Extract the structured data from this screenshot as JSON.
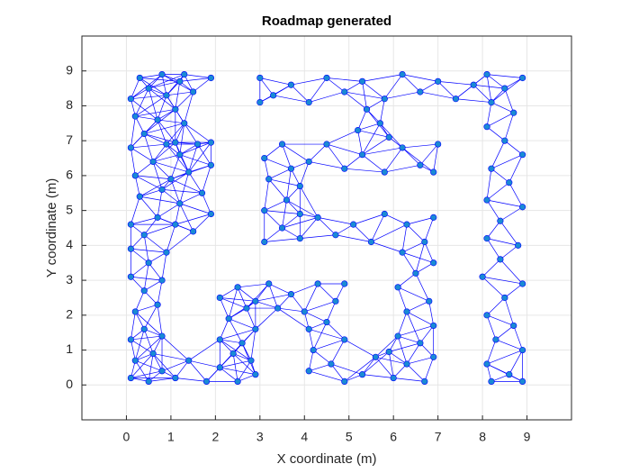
{
  "chart_data": {
    "type": "scatter",
    "title": "Roadmap generated",
    "xlabel": "X coordinate (m)",
    "ylabel": "Y coordinate (m)",
    "x": [
      0.1,
      0.5,
      0.8,
      0.2,
      0.6,
      0.1,
      0.4,
      0.8,
      0.2,
      0.7,
      0.4,
      0.1,
      0.8,
      0.5,
      0.1,
      0.9,
      0.4,
      0.1,
      0.7,
      0.3,
      0.8,
      0.2,
      0.6,
      0.1,
      0.9,
      0.4,
      0.2,
      0.7,
      0.1,
      0.5,
      0.9,
      0.3,
      0.8,
      1.2,
      1.5,
      1.9,
      1.3,
      1.1,
      1.3,
      1.1,
      1.5,
      1.9,
      1.2,
      1.7,
      1.0,
      1.4,
      1.9,
      1.2,
      1.6,
      1.9,
      1.1,
      1.1,
      1.4,
      1.8,
      2.1,
      2.5,
      2.8,
      2.4,
      2.9,
      2.1,
      2.6,
      2.9,
      2.3,
      2.7,
      2.1,
      2.5,
      2.9,
      3.2,
      3.4,
      3.7,
      4.0,
      4.3,
      4.7,
      4.9,
      4.1,
      4.5,
      4.9,
      4.2,
      4.6,
      4.1,
      4.9,
      5.3,
      5.6,
      6.0,
      6.3,
      6.7,
      6.9,
      5.9,
      6.1,
      6.6,
      6.9,
      6.3,
      6.8,
      6.1,
      6.5,
      6.9,
      6.2,
      6.7,
      6.9,
      6.3,
      3.1,
      3.5,
      3.9,
      4.3,
      4.7,
      5.1,
      5.5,
      5.8,
      3.9,
      3.1,
      3.6,
      3.9,
      3.2,
      3.7,
      3.1,
      3.5,
      4.1,
      4.5,
      4.9,
      5.3,
      5.8,
      6.2,
      6.6,
      7.0,
      6.9,
      5.2,
      5.7,
      5.4,
      5.9,
      3.0,
      3.3,
      3.7,
      4.1,
      4.5,
      4.9,
      5.3,
      5.8,
      6.2,
      6.6,
      7.0,
      7.4,
      7.8,
      3.0,
      8.1,
      8.5,
      8.9,
      8.2,
      8.7,
      8.1,
      8.5,
      8.9,
      8.2,
      8.6,
      8.1,
      8.9,
      8.4,
      8.1,
      8.8,
      8.4,
      8.0,
      8.9,
      8.5,
      8.1,
      8.7,
      8.3,
      8.9,
      8.1,
      8.6,
      8.9,
      8.2
    ],
    "y": [
      0.2,
      0.1,
      0.4,
      0.7,
      0.9,
      1.3,
      1.6,
      1.4,
      2.1,
      2.3,
      2.7,
      3.1,
      3.0,
      3.5,
      3.9,
      3.8,
      4.3,
      4.6,
      4.8,
      5.4,
      5.6,
      6.0,
      6.4,
      6.8,
      6.9,
      7.2,
      7.7,
      7.6,
      8.2,
      8.5,
      8.3,
      8.8,
      8.9,
      8.7,
      8.4,
      8.8,
      8.9,
      7.9,
      7.5,
      4.6,
      4.4,
      4.9,
      5.2,
      5.5,
      5.9,
      6.1,
      6.3,
      6.6,
      6.9,
      6.95,
      6.95,
      0.2,
      0.7,
      0.1,
      0.5,
      0.1,
      0.7,
      0.9,
      0.3,
      1.3,
      1.2,
      1.6,
      1.9,
      2.2,
      2.5,
      2.8,
      2.4,
      2.9,
      2.2,
      2.6,
      2.1,
      2.9,
      2.4,
      2.9,
      1.6,
      1.8,
      1.3,
      1.0,
      0.6,
      0.4,
      0.1,
      0.3,
      0.8,
      0.2,
      0.6,
      0.1,
      0.8,
      0.95,
      1.4,
      1.2,
      1.7,
      2.1,
      2.4,
      2.8,
      3.2,
      3.5,
      3.8,
      4.1,
      4.8,
      4.6,
      4.1,
      4.5,
      4.2,
      4.8,
      4.3,
      4.6,
      4.1,
      4.9,
      4.9,
      5.0,
      5.3,
      5.7,
      5.9,
      6.2,
      6.5,
      6.9,
      6.4,
      6.9,
      6.2,
      6.6,
      6.1,
      6.8,
      6.3,
      6.9,
      6.1,
      7.3,
      7.5,
      7.9,
      7.1,
      8.8,
      8.3,
      8.6,
      8.1,
      8.8,
      8.4,
      8.7,
      8.2,
      8.9,
      8.4,
      8.7,
      8.2,
      8.6,
      8.1,
      8.9,
      8.5,
      8.8,
      8.1,
      7.8,
      7.4,
      7.0,
      6.6,
      6.2,
      5.8,
      5.3,
      5.1,
      4.7,
      4.2,
      4.0,
      3.6,
      3.1,
      2.9,
      2.5,
      2.0,
      1.7,
      1.3,
      1.0,
      0.6,
      0.3,
      0.1,
      0.1
    ],
    "color": "#1a8ad4",
    "edge_color": "#0000ff",
    "xlim": [
      -1,
      10
    ],
    "ylim": [
      -1,
      10
    ],
    "xticks": [
      0,
      1,
      2,
      3,
      4,
      5,
      6,
      7,
      8,
      9
    ],
    "yticks": [
      0,
      1,
      2,
      3,
      4,
      5,
      6,
      7,
      8,
      9
    ],
    "grid": true
  }
}
